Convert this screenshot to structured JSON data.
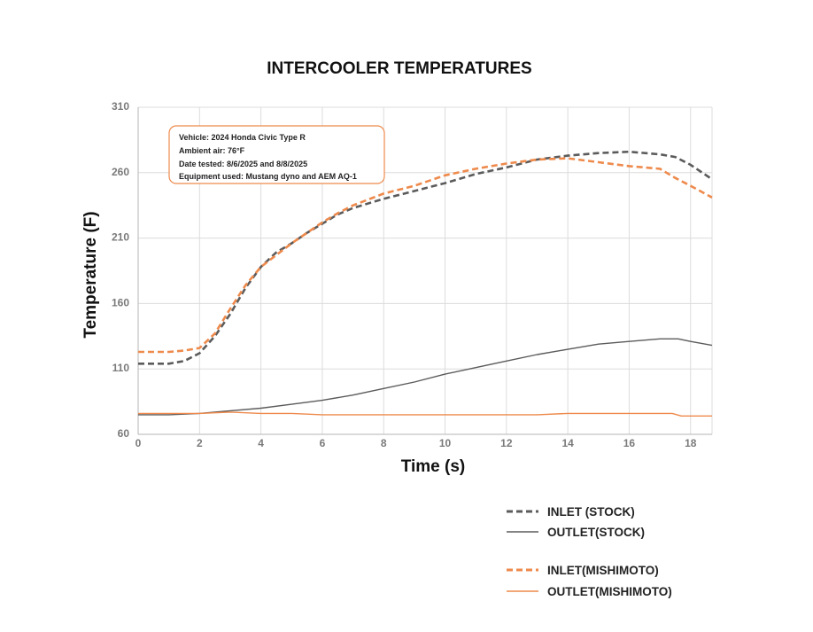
{
  "colors": {
    "stock": "#5b5b5b",
    "mishimoto": "#ee8a4c",
    "grid": "#dcdcdc",
    "tick": "#7a7a7a",
    "info_border": "#ee8a4c"
  },
  "info_box": {
    "lines": [
      "Vehicle: 2024 Honda Civic Type R",
      "Ambient air: 76°F",
      "Date tested: 8/6/2025 and 8/8/2025",
      "Equipment used: Mustang dyno and AEM AQ-1"
    ]
  },
  "chart_data": {
    "type": "line",
    "title": "INTERCOOLER TEMPERATURES",
    "xlabel": "Time (s)",
    "ylabel": "Temperature (F)",
    "xlim": [
      0,
      18.7
    ],
    "ylim": [
      60,
      310
    ],
    "xticks": [
      "0",
      "2",
      "4",
      "6",
      "8",
      "10",
      "12",
      "14",
      "16",
      "18"
    ],
    "yticks": [
      "60",
      "110",
      "160",
      "210",
      "260",
      "310"
    ],
    "grid": true,
    "legend_position": "bottom-right",
    "series": [
      {
        "name": "INLET (STOCK)",
        "style": "dashed",
        "color": "#5b5b5b",
        "x": [
          0,
          0.5,
          1,
          1.5,
          2,
          2.5,
          3,
          3.5,
          4,
          4.5,
          5,
          5.5,
          6,
          6.5,
          7,
          8,
          9,
          10,
          11,
          12,
          13,
          14,
          15,
          16,
          17,
          17.5,
          18,
          18.7
        ],
        "y": [
          114,
          114,
          114,
          116,
          122,
          135,
          152,
          172,
          188,
          199,
          206,
          214,
          221,
          228,
          233,
          240,
          246,
          252,
          259,
          264,
          270,
          273,
          275,
          276,
          274,
          272,
          266,
          255
        ]
      },
      {
        "name": "OUTLET(STOCK)",
        "style": "solid",
        "color": "#5b5b5b",
        "x": [
          0,
          1,
          2,
          3,
          4,
          5,
          6,
          7,
          8,
          9,
          10,
          11,
          12,
          13,
          14,
          15,
          16,
          17,
          17.6,
          18,
          18.7
        ],
        "y": [
          75,
          75,
          76,
          78,
          80,
          83,
          86,
          90,
          95,
          100,
          106,
          111,
          116,
          121,
          125,
          129,
          131,
          133,
          133,
          131,
          128
        ]
      },
      {
        "name": "INLET(MISHIMOTO)",
        "style": "dashed",
        "color": "#ee8a4c",
        "x": [
          0,
          0.5,
          1,
          1.5,
          2,
          2.5,
          3,
          3.5,
          4,
          4.5,
          5,
          5.5,
          6,
          6.5,
          7,
          8,
          9,
          10,
          11,
          12,
          13,
          14,
          15,
          16,
          17,
          17.5,
          18,
          18.7
        ],
        "y": [
          123,
          123,
          123,
          124,
          126,
          137,
          156,
          174,
          188,
          197,
          206,
          214,
          222,
          229,
          235,
          244,
          250,
          258,
          263,
          267,
          270,
          271,
          268,
          265,
          263,
          256,
          250,
          241
        ]
      },
      {
        "name": "OUTLET(MISHIMOTO)",
        "style": "solid",
        "color": "#ee8a4c",
        "x": [
          0,
          1,
          2,
          3,
          4,
          5,
          6,
          7,
          8,
          9,
          10,
          11,
          12,
          13,
          14,
          15,
          16,
          17,
          17.4,
          17.7,
          18.7
        ],
        "y": [
          76,
          76,
          76,
          77,
          76,
          76,
          75,
          75,
          75,
          75,
          75,
          75,
          75,
          75,
          76,
          76,
          76,
          76,
          76,
          74,
          74
        ]
      }
    ]
  }
}
